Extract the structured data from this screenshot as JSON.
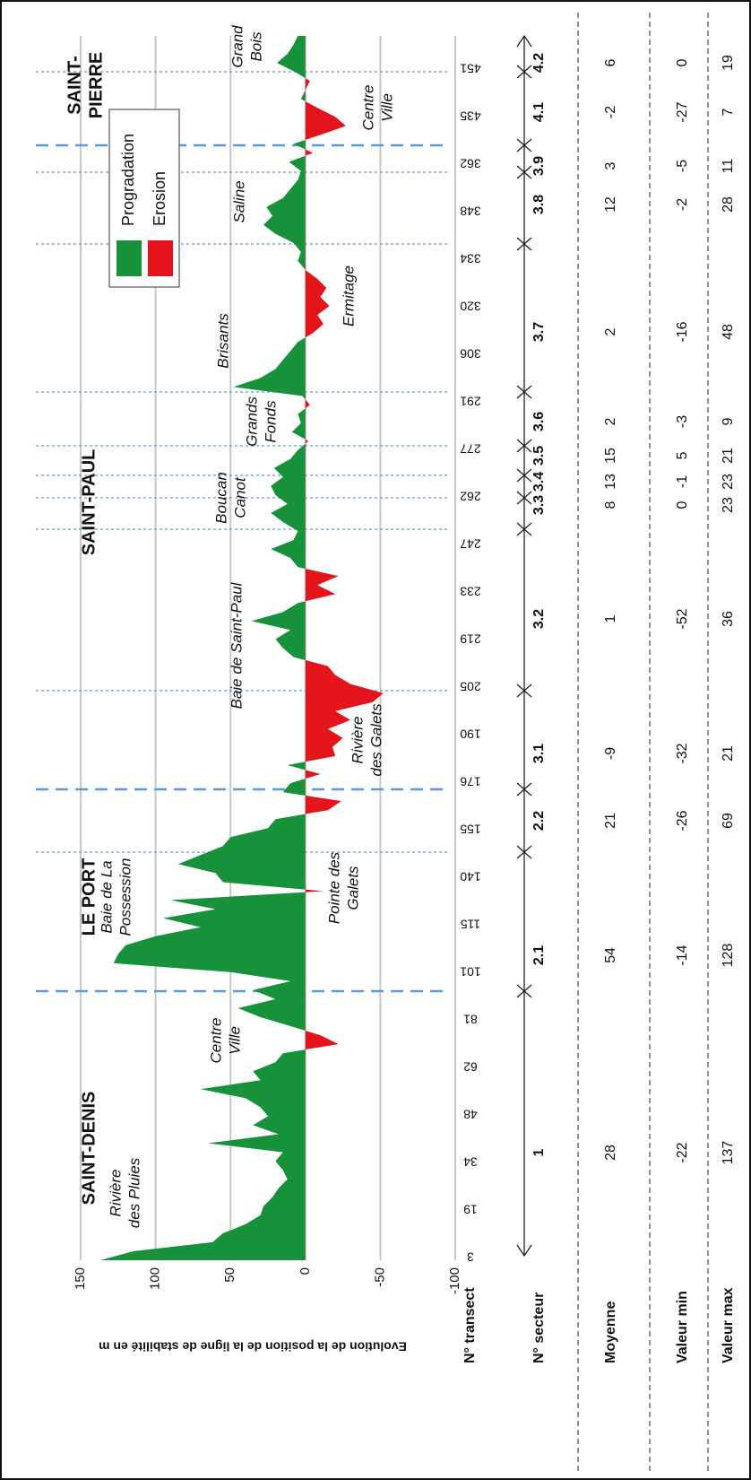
{
  "chart_data": {
    "type": "area",
    "ylabel": "Evolution de la position de la ligne de stabilité en m",
    "x_label": "N° transect",
    "ylim": [
      -100,
      150
    ],
    "yticks": [
      -100,
      -50,
      0,
      50,
      100,
      150
    ],
    "grid": true,
    "legend_position": "upper right",
    "legend": [
      {
        "name": "Progradation",
        "color": "#17923b"
      },
      {
        "name": "Erosion",
        "color": "#e3141b"
      }
    ],
    "transects": [
      3,
      19,
      34,
      48,
      62,
      81,
      101,
      115,
      140,
      155,
      176,
      190,
      205,
      219,
      233,
      247,
      262,
      277,
      291,
      306,
      320,
      334,
      348,
      362,
      435,
      451
    ],
    "values": [
      137,
      115,
      62,
      55,
      40,
      30,
      28,
      22,
      18,
      12,
      15,
      20,
      15,
      65,
      18,
      35,
      25,
      30,
      40,
      70,
      30,
      35,
      20,
      15,
      -22,
      -10,
      10,
      30,
      45,
      20,
      35,
      10,
      50,
      128,
      125,
      120,
      100,
      70,
      95,
      60,
      90,
      -12,
      55,
      60,
      85,
      70,
      55,
      50,
      25,
      20,
      -15,
      -24,
      15,
      10,
      -10,
      12,
      -20,
      -18,
      -25,
      -15,
      -30,
      -20,
      -45,
      -52,
      -30,
      -20,
      -15,
      8,
      15,
      20,
      10,
      36,
      15,
      5,
      -20,
      -8,
      -22,
      5,
      10,
      23,
      8,
      5,
      15,
      23,
      12,
      20,
      23,
      15,
      21,
      10,
      5,
      -2,
      9,
      3,
      5,
      -3,
      2,
      48,
      30,
      20,
      15,
      10,
      5,
      -5,
      -12,
      -8,
      -16,
      -10,
      -14,
      -8,
      0,
      5,
      3,
      8,
      20,
      28,
      22,
      26,
      15,
      10,
      5,
      3,
      11,
      -5,
      8,
      -10,
      -27,
      -20,
      -8,
      3,
      0,
      -3,
      7,
      19,
      12,
      8,
      5
    ],
    "regions": [
      {
        "lines": [
          "SAINT-DENIS"
        ]
      },
      {
        "lines": [
          "LE PORT"
        ]
      },
      {
        "lines": [
          "SAINT-PAUL"
        ]
      },
      {
        "lines": [
          "SAINT-",
          "PIERRE"
        ]
      }
    ],
    "annotations": [
      {
        "lines": [
          "Rivière",
          "des Pluies"
        ]
      },
      {
        "lines": [
          "Centre",
          "Ville"
        ]
      },
      {
        "lines": [
          "Baie de La",
          "Possession"
        ]
      },
      {
        "lines": [
          "Pointe des",
          "Galets"
        ]
      },
      {
        "lines": [
          "Rivière",
          "des Galets"
        ]
      },
      {
        "lines": [
          "Baie de Saint-Paul"
        ]
      },
      {
        "lines": [
          "Boucan",
          "Canot"
        ]
      },
      {
        "lines": [
          "Grands",
          "Fonds"
        ]
      },
      {
        "lines": [
          "Brisants"
        ]
      },
      {
        "lines": [
          "Ermitage"
        ]
      },
      {
        "lines": [
          "Saline"
        ]
      },
      {
        "lines": [
          "Centre",
          "Ville"
        ]
      },
      {
        "lines": [
          "Grand",
          "Bois"
        ]
      }
    ]
  },
  "table": {
    "row_labels": [
      "N° secteur",
      "Moyenne",
      "Valeur min",
      "Valeur max"
    ],
    "sectors": [
      {
        "id": "1",
        "mean": 28,
        "min": -22,
        "max": 137
      },
      {
        "id": "2.1",
        "mean": 54,
        "min": -14,
        "max": 128
      },
      {
        "id": "2.2",
        "mean": 21,
        "min": -26,
        "max": 69
      },
      {
        "id": "3.1",
        "mean": -9,
        "min": -32,
        "max": 21
      },
      {
        "id": "3.2",
        "mean": 1,
        "min": -52,
        "max": 36
      },
      {
        "id": "3.3",
        "mean": 8,
        "min": 0,
        "max": 23
      },
      {
        "id": "3.4",
        "mean": 13,
        "min": -1,
        "max": 23
      },
      {
        "id": "3.5",
        "mean": 15,
        "min": 5,
        "max": 21
      },
      {
        "id": "3.6",
        "mean": 2,
        "min": -3,
        "max": 9
      },
      {
        "id": "3.7",
        "mean": 2,
        "min": -16,
        "max": 48
      },
      {
        "id": "3.8",
        "mean": 12,
        "min": -2,
        "max": 28
      },
      {
        "id": "3.9",
        "mean": 3,
        "min": -5,
        "max": 11
      },
      {
        "id": "4.1",
        "mean": -2,
        "min": -27,
        "max": 7
      },
      {
        "id": "4.2",
        "mean": 6,
        "min": 0,
        "max": 19
      }
    ]
  }
}
